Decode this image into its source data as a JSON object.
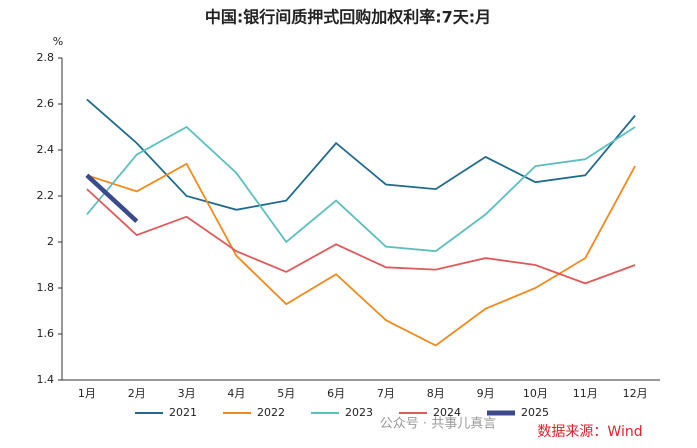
{
  "chart_data": {
    "type": "line",
    "title": "中国:银行间质押式回购加权利率:7天:月",
    "y_unit": "%",
    "categories": [
      "1月",
      "2月",
      "3月",
      "4月",
      "5月",
      "6月",
      "7月",
      "8月",
      "9月",
      "10月",
      "11月",
      "12月"
    ],
    "series": [
      {
        "name": "2021",
        "color": "#1f6b8e",
        "values": [
          2.62,
          2.43,
          2.2,
          2.14,
          2.18,
          2.43,
          2.25,
          2.23,
          2.37,
          2.26,
          2.29,
          2.55
        ]
      },
      {
        "name": "2022",
        "color": "#f08a1c",
        "values": [
          2.29,
          2.22,
          2.34,
          1.94,
          1.73,
          1.86,
          1.66,
          1.55,
          1.71,
          1.8,
          1.93,
          2.33
        ]
      },
      {
        "name": "2023",
        "color": "#5bbfbd",
        "values": [
          2.12,
          2.38,
          2.5,
          2.3,
          2.0,
          2.18,
          1.98,
          1.96,
          2.12,
          2.33,
          2.36,
          2.5
        ]
      },
      {
        "name": "2024",
        "color": "#e05a5a",
        "values": [
          2.23,
          2.03,
          2.11,
          1.96,
          1.87,
          1.99,
          1.89,
          1.88,
          1.93,
          1.9,
          1.82,
          1.9
        ]
      },
      {
        "name": "2025",
        "color": "#3b4a8a",
        "values": [
          2.29,
          2.09,
          null,
          null,
          null,
          null,
          null,
          null,
          null,
          null,
          null,
          null
        ]
      }
    ],
    "ylim": [
      1.4,
      2.8
    ],
    "yticks": [
      1.4,
      1.6,
      1.8,
      2,
      2.2,
      2.4,
      2.6,
      2.8
    ],
    "grid": false,
    "legend": "bottom",
    "source": "数据来源：Wind",
    "watermark": "公众号 · 共事儿真言"
  }
}
